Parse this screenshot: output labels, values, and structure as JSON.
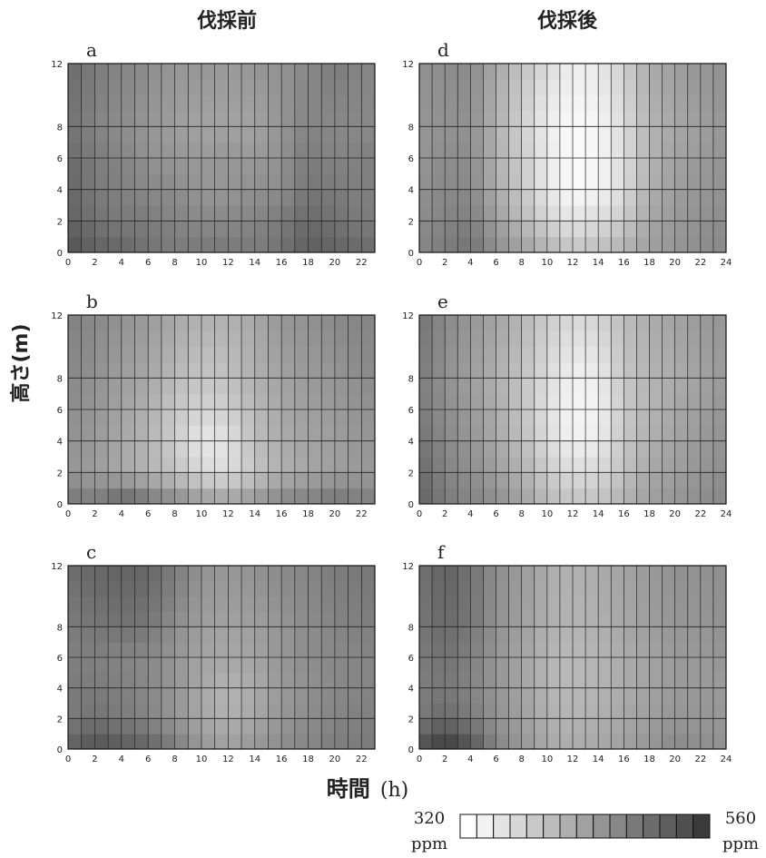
{
  "headers": {
    "left": "伐採前",
    "right": "伐採後"
  },
  "ylabel": "高さ(m)",
  "xlabel": {
    "kanji": "時間",
    "unit": "(h)"
  },
  "colorbar": {
    "min_value": "320",
    "min_unit": "ppm",
    "max_value": "560",
    "max_unit": "ppm",
    "colors": [
      "#ffffff",
      "#f2f2f2",
      "#e4e4e4",
      "#d7d7d7",
      "#c9c9c9",
      "#bcbcbc",
      "#afafaf",
      "#a1a1a1",
      "#949494",
      "#878787",
      "#797979",
      "#6c6c6c",
      "#5e5e5e",
      "#505050",
      "#3a3a3a"
    ]
  },
  "chart_data": [
    {
      "type": "heatmap",
      "label": "a",
      "x_ticks": [
        "0",
        "2",
        "4",
        "6",
        "8",
        "10",
        "12",
        "14",
        "16",
        "18",
        "20",
        "22"
      ],
      "y_ticks": [
        "0",
        "2",
        "4",
        "6",
        "8",
        "12"
      ],
      "xlim": [
        0,
        23
      ],
      "ylim": [
        0,
        12
      ],
      "heights": [
        0,
        2,
        4,
        6,
        8,
        12
      ],
      "hours": [
        0,
        2,
        4,
        6,
        8,
        10,
        12,
        14,
        16,
        18,
        20,
        22
      ],
      "values": [
        [
          520,
          500,
          495,
          480,
          470,
          475,
          475,
          470,
          480,
          505,
          500,
          490
        ],
        [
          500,
          480,
          470,
          470,
          460,
          455,
          455,
          460,
          470,
          490,
          480,
          470
        ],
        [
          495,
          470,
          465,
          455,
          450,
          440,
          440,
          445,
          450,
          475,
          470,
          465
        ],
        [
          490,
          470,
          460,
          445,
          440,
          435,
          440,
          435,
          445,
          470,
          460,
          465
        ],
        [
          480,
          460,
          450,
          440,
          430,
          425,
          425,
          425,
          440,
          460,
          455,
          455
        ],
        [
          490,
          470,
          460,
          450,
          440,
          440,
          435,
          440,
          445,
          455,
          470,
          460
        ]
      ]
    },
    {
      "type": "heatmap",
      "label": "b",
      "x_ticks": [
        "0",
        "2",
        "4",
        "6",
        "8",
        "10",
        "12",
        "14",
        "16",
        "18",
        "20",
        "22"
      ],
      "y_ticks": [
        "0",
        "2",
        "4",
        "6",
        "8",
        "12"
      ],
      "xlim": [
        0,
        23
      ],
      "ylim": [
        0,
        12
      ],
      "heights": [
        0,
        2,
        4,
        6,
        8,
        12
      ],
      "hours": [
        0,
        2,
        4,
        6,
        8,
        10,
        12,
        14,
        16,
        18,
        20,
        22
      ],
      "values": [
        [
          480,
          470,
          500,
          480,
          460,
          440,
          430,
          445,
          460,
          470,
          480,
          470
        ],
        [
          440,
          430,
          420,
          405,
          390,
          365,
          360,
          385,
          410,
          420,
          430,
          435
        ],
        [
          445,
          435,
          420,
          405,
          375,
          345,
          350,
          395,
          415,
          425,
          430,
          440
        ],
        [
          450,
          440,
          425,
          410,
          385,
          370,
          375,
          400,
          420,
          430,
          435,
          445
        ],
        [
          455,
          445,
          430,
          420,
          400,
          385,
          390,
          410,
          425,
          435,
          440,
          450
        ],
        [
          465,
          455,
          445,
          435,
          420,
          410,
          410,
          420,
          440,
          445,
          455,
          460
        ]
      ]
    },
    {
      "type": "heatmap",
      "label": "c",
      "x_ticks": [
        "0",
        "2",
        "4",
        "6",
        "8",
        "10",
        "12",
        "14",
        "16",
        "18",
        "20",
        "22"
      ],
      "y_ticks": [
        "0",
        "2",
        "4",
        "6",
        "8",
        "12"
      ],
      "xlim": [
        0,
        23
      ],
      "ylim": [
        0,
        12
      ],
      "heights": [
        0,
        2,
        4,
        6,
        8,
        12
      ],
      "hours": [
        0,
        2,
        4,
        6,
        8,
        10,
        12,
        14,
        16,
        18,
        20,
        22
      ],
      "values": [
        [
          500,
          520,
          510,
          500,
          470,
          440,
          430,
          440,
          450,
          460,
          470,
          470
        ],
        [
          470,
          480,
          470,
          460,
          440,
          420,
          410,
          420,
          440,
          450,
          460,
          465
        ],
        [
          470,
          470,
          465,
          455,
          440,
          420,
          405,
          415,
          435,
          445,
          455,
          460
        ],
        [
          465,
          465,
          460,
          455,
          440,
          425,
          420,
          425,
          440,
          450,
          455,
          460
        ],
        [
          470,
          475,
          480,
          475,
          450,
          430,
          425,
          430,
          440,
          450,
          460,
          465
        ],
        [
          485,
          495,
          500,
          495,
          470,
          445,
          440,
          445,
          455,
          460,
          470,
          475
        ]
      ]
    },
    {
      "type": "heatmap",
      "label": "d",
      "x_ticks": [
        "0",
        "2",
        "4",
        "6",
        "8",
        "10",
        "12",
        "14",
        "16",
        "18",
        "20",
        "22",
        "24"
      ],
      "y_ticks": [
        "0",
        "2",
        "4",
        "6",
        "8",
        "12"
      ],
      "xlim": [
        0,
        24
      ],
      "ylim": [
        0,
        12
      ],
      "heights": [
        0,
        2,
        4,
        6,
        8,
        12
      ],
      "hours": [
        0,
        2,
        4,
        6,
        8,
        10,
        12,
        14,
        16,
        18,
        20,
        22,
        24
      ],
      "values": [
        [
          460,
          470,
          480,
          450,
          430,
          410,
          390,
          395,
          410,
          430,
          440,
          450,
          455
        ],
        [
          450,
          460,
          465,
          430,
          400,
          370,
          350,
          360,
          380,
          420,
          435,
          445,
          450
        ],
        [
          445,
          455,
          455,
          415,
          385,
          345,
          325,
          330,
          360,
          410,
          430,
          440,
          445
        ],
        [
          440,
          450,
          450,
          410,
          380,
          345,
          325,
          330,
          360,
          405,
          425,
          435,
          440
        ],
        [
          440,
          445,
          445,
          410,
          375,
          340,
          325,
          330,
          360,
          405,
          420,
          430,
          440
        ],
        [
          445,
          450,
          455,
          420,
          390,
          360,
          340,
          345,
          375,
          415,
          430,
          440,
          445
        ]
      ]
    },
    {
      "type": "heatmap",
      "label": "e",
      "x_ticks": [
        "0",
        "2",
        "4",
        "6",
        "8",
        "10",
        "12",
        "14",
        "16",
        "18",
        "20",
        "22",
        "24"
      ],
      "y_ticks": [
        "0",
        "2",
        "4",
        "6",
        "8",
        "12"
      ],
      "xlim": [
        0,
        24
      ],
      "ylim": [
        0,
        12
      ],
      "heights": [
        0,
        2,
        4,
        6,
        8,
        12
      ],
      "hours": [
        0,
        2,
        4,
        6,
        8,
        10,
        12,
        14,
        16,
        18,
        20,
        22,
        24
      ],
      "values": [
        [
          500,
          470,
          460,
          450,
          430,
          400,
          390,
          390,
          410,
          430,
          440,
          450,
          455
        ],
        [
          490,
          460,
          450,
          430,
          410,
          380,
          360,
          365,
          390,
          420,
          430,
          440,
          450
        ],
        [
          480,
          455,
          440,
          420,
          395,
          360,
          335,
          340,
          385,
          410,
          425,
          435,
          445
        ],
        [
          470,
          450,
          435,
          415,
          390,
          355,
          330,
          335,
          380,
          405,
          420,
          430,
          440
        ],
        [
          470,
          445,
          430,
          410,
          390,
          360,
          335,
          340,
          385,
          405,
          415,
          425,
          435
        ],
        [
          480,
          455,
          440,
          425,
          405,
          380,
          365,
          370,
          395,
          415,
          425,
          435,
          440
        ]
      ]
    },
    {
      "type": "heatmap",
      "label": "f",
      "x_ticks": [
        "0",
        "2",
        "4",
        "6",
        "8",
        "10",
        "12",
        "14",
        "16",
        "18",
        "20",
        "22",
        "24"
      ],
      "y_ticks": [
        "0",
        "2",
        "4",
        "6",
        "8",
        "12"
      ],
      "xlim": [
        0,
        24
      ],
      "ylim": [
        0,
        12
      ],
      "heights": [
        0,
        2,
        4,
        6,
        8,
        12
      ],
      "hours": [
        0,
        2,
        4,
        6,
        8,
        10,
        12,
        14,
        16,
        18,
        20,
        22,
        24
      ],
      "values": [
        [
          520,
          550,
          520,
          460,
          440,
          420,
          415,
          420,
          430,
          440,
          455,
          450,
          445
        ],
        [
          470,
          490,
          470,
          445,
          430,
          410,
          405,
          410,
          420,
          430,
          440,
          440,
          440
        ],
        [
          465,
          475,
          460,
          440,
          425,
          405,
          400,
          405,
          415,
          425,
          435,
          435,
          435
        ],
        [
          470,
          480,
          465,
          440,
          425,
          405,
          400,
          405,
          415,
          425,
          435,
          435,
          440
        ],
        [
          475,
          490,
          475,
          445,
          430,
          410,
          405,
          410,
          420,
          430,
          440,
          440,
          445
        ],
        [
          480,
          500,
          480,
          450,
          435,
          415,
          410,
          415,
          425,
          435,
          445,
          445,
          450
        ]
      ]
    }
  ]
}
